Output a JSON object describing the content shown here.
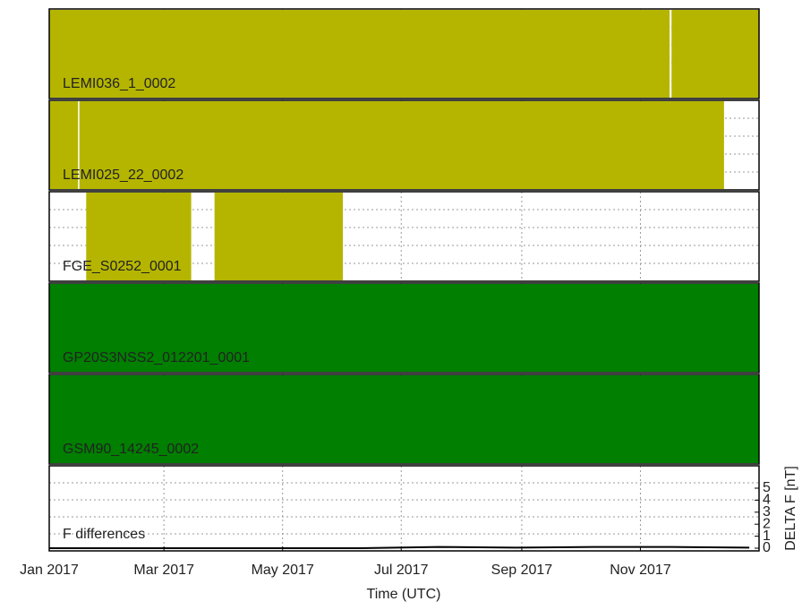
{
  "chart_data": {
    "type": "timeline",
    "xlabel": "Time (UTC)",
    "xlim": [
      0,
      365
    ],
    "xticks": [
      {
        "value": 0,
        "label": "Jan 2017"
      },
      {
        "value": 59,
        "label": "Mar 2017"
      },
      {
        "value": 120,
        "label": "May 2017"
      },
      {
        "value": 181,
        "label": "Jul 2017"
      },
      {
        "value": 243,
        "label": "Sep 2017"
      },
      {
        "value": 304,
        "label": "Nov 2017"
      }
    ],
    "panels": [
      {
        "name": "LEMI036_1_0002",
        "color": "#b5b500",
        "segments": [
          [
            0,
            319
          ],
          [
            320,
            365
          ]
        ]
      },
      {
        "name": "LEMI025_22_0002",
        "color": "#b5b500",
        "segments": [
          [
            0,
            14.8
          ],
          [
            15.5,
            347
          ]
        ]
      },
      {
        "name": "FGE_S0252_0001",
        "color": "#b5b500",
        "segments": [
          [
            19,
            73
          ],
          [
            85,
            151
          ]
        ]
      },
      {
        "name": "GP20S3NSS2_012201_0001",
        "color": "#007f00",
        "segments": [
          [
            0,
            365
          ]
        ]
      },
      {
        "name": "GSM90_14245_0002",
        "color": "#007f00",
        "segments": [
          [
            0,
            365
          ]
        ]
      }
    ],
    "differences": {
      "name": "F differences",
      "ylabel": "DELTA F [nT]",
      "color": "#000000",
      "ylim": [
        0,
        5
      ],
      "yticks": [
        0,
        1,
        2,
        3,
        4,
        5
      ],
      "x": [
        0,
        60,
        120,
        160,
        200,
        240,
        280,
        320,
        360
      ],
      "values": [
        0,
        0,
        0,
        0,
        0.1,
        0.05,
        0.1,
        0.1,
        0.05
      ]
    }
  }
}
